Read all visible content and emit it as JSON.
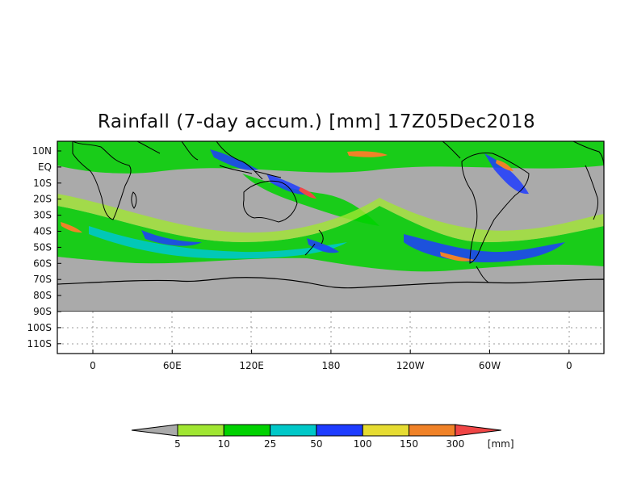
{
  "title": "Rainfall (7-day accum.) [mm] 17Z05Dec2018",
  "map": {
    "projection": "cylindrical",
    "grid": true,
    "land_color": "#aaaaaa",
    "lat_labels": [
      "10N",
      "EQ",
      "10S",
      "20S",
      "30S",
      "40S",
      "50S",
      "60S",
      "70S",
      "80S",
      "90S",
      "100S",
      "110S"
    ],
    "lon_labels": [
      "0",
      "60E",
      "120E",
      "180",
      "120W",
      "60W",
      "0"
    ]
  },
  "colorbar": {
    "unit": "[mm]",
    "thresholds": [
      "5",
      "10",
      "25",
      "50",
      "100",
      "150",
      "300"
    ],
    "colors": [
      "#a0e632",
      "#00d200",
      "#00c8c8",
      "#1e3cff",
      "#e6dc32",
      "#f08228",
      "#f04646"
    ],
    "below_color": "#aaaaaa"
  }
}
